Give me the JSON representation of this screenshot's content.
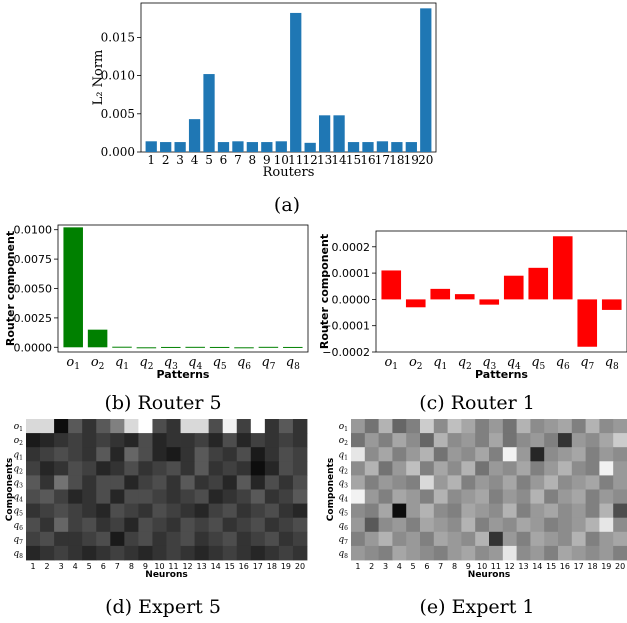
{
  "panels": {
    "a": {
      "caption": "(a)",
      "chart_data": {
        "type": "bar",
        "categories": [
          "1",
          "2",
          "3",
          "4",
          "5",
          "6",
          "7",
          "8",
          "9",
          "10",
          "11",
          "12",
          "13",
          "14",
          "15",
          "16",
          "17",
          "18",
          "19",
          "20"
        ],
        "values": [
          0.0014,
          0.0013,
          0.0013,
          0.0043,
          0.0102,
          0.0013,
          0.0014,
          0.0013,
          0.0013,
          0.0014,
          0.0182,
          0.0012,
          0.0048,
          0.0048,
          0.0013,
          0.0013,
          0.0014,
          0.0013,
          0.0013,
          0.0188
        ],
        "xlabel": "Routers",
        "ylabel": "L₂ Norm",
        "ylim": [
          0,
          0.0195
        ],
        "yticks": [
          0.0,
          0.005,
          0.01,
          0.015
        ],
        "ytick_labels": [
          "0.000",
          "0.005",
          "0.010",
          "0.015"
        ],
        "color": "#1f77b4"
      }
    },
    "b": {
      "caption": "(b) Router 5",
      "chart_data": {
        "type": "bar",
        "categories": [
          "o1",
          "o2",
          "q1",
          "q2",
          "q3",
          "q4",
          "q5",
          "q6",
          "q7",
          "q8"
        ],
        "category_labels": [
          [
            "o",
            "1"
          ],
          [
            "o",
            "2"
          ],
          [
            "q",
            "1"
          ],
          [
            "q",
            "2"
          ],
          [
            "q",
            "3"
          ],
          [
            "q",
            "4"
          ],
          [
            "q",
            "5"
          ],
          [
            "q",
            "6"
          ],
          [
            "q",
            "7"
          ],
          [
            "q",
            "8"
          ]
        ],
        "values": [
          0.0102,
          0.0015,
          5e-05,
          -8e-05,
          3e-05,
          4e-05,
          3e-05,
          -5e-05,
          4e-05,
          3e-05
        ],
        "xlabel": "Patterns",
        "ylabel": "Router component",
        "ylim": [
          -0.0004,
          0.0104
        ],
        "yticks": [
          0,
          0.0025,
          0.005,
          0.0075,
          0.01
        ],
        "ytick_labels": [
          "0.0000",
          "0.0025",
          "0.0050",
          "0.0075",
          "0.0100"
        ],
        "color": "#008000"
      }
    },
    "c": {
      "caption": "(c) Router 1",
      "chart_data": {
        "type": "bar",
        "categories": [
          "o1",
          "o2",
          "q1",
          "q2",
          "q3",
          "q4",
          "q5",
          "q6",
          "q7",
          "q8"
        ],
        "category_labels": [
          [
            "o",
            "1"
          ],
          [
            "o",
            "2"
          ],
          [
            "q",
            "1"
          ],
          [
            "q",
            "2"
          ],
          [
            "q",
            "3"
          ],
          [
            "q",
            "4"
          ],
          [
            "q",
            "5"
          ],
          [
            "q",
            "6"
          ],
          [
            "q",
            "7"
          ],
          [
            "q",
            "8"
          ]
        ],
        "values": [
          0.00011,
          -3e-05,
          4e-05,
          2e-05,
          -2e-05,
          9e-05,
          0.00012,
          0.00024,
          -0.00018,
          -4e-05
        ],
        "xlabel": "Patterns",
        "ylabel": "Router component",
        "ylim": [
          -0.0002,
          0.00026
        ],
        "yticks": [
          -0.0002,
          -0.0001,
          0.0,
          0.0001,
          0.0002
        ],
        "ytick_labels": [
          "−0.0002",
          "−0.0001",
          "0.0000",
          "0.0001",
          "0.0002"
        ],
        "color": "#ff0000"
      }
    },
    "d": {
      "caption": "(d) Expert 5",
      "chart_data": {
        "type": "heatmap",
        "xlabel": "Neurons",
        "ylabel": "Components",
        "x_categories": [
          "1",
          "2",
          "3",
          "4",
          "5",
          "6",
          "7",
          "8",
          "9",
          "10",
          "11",
          "12",
          "13",
          "14",
          "15",
          "16",
          "17",
          "18",
          "19",
          "20"
        ],
        "y_categories": [
          [
            "o",
            "1"
          ],
          [
            "o",
            "2"
          ],
          [
            "q",
            "1"
          ],
          [
            "q",
            "2"
          ],
          [
            "q",
            "3"
          ],
          [
            "q",
            "4"
          ],
          [
            "q",
            "5"
          ],
          [
            "q",
            "6"
          ],
          [
            "q",
            "7"
          ],
          [
            "q",
            "8"
          ]
        ],
        "values": [
          [
            0.85,
            0.85,
            0.05,
            0.35,
            0.2,
            0.35,
            0.5,
            0.85,
            1.0,
            0.3,
            0.2,
            0.85,
            0.85,
            0.3,
            0.95,
            0.25,
            1.0,
            0.2,
            0.35,
            0.2
          ],
          [
            0.1,
            0.15,
            0.2,
            0.25,
            0.2,
            0.25,
            0.2,
            0.15,
            0.3,
            0.15,
            0.2,
            0.2,
            0.25,
            0.15,
            0.3,
            0.15,
            0.25,
            0.2,
            0.25,
            0.2
          ],
          [
            0.2,
            0.25,
            0.3,
            0.25,
            0.2,
            0.35,
            0.15,
            0.4,
            0.3,
            0.15,
            0.1,
            0.2,
            0.35,
            0.25,
            0.2,
            0.3,
            0.1,
            0.2,
            0.3,
            0.25
          ],
          [
            0.25,
            0.15,
            0.2,
            0.3,
            0.25,
            0.15,
            0.2,
            0.3,
            0.2,
            0.25,
            0.3,
            0.2,
            0.35,
            0.2,
            0.25,
            0.2,
            0.05,
            0.15,
            0.3,
            0.25
          ],
          [
            0.35,
            0.2,
            0.45,
            0.3,
            0.2,
            0.3,
            0.3,
            0.15,
            0.25,
            0.3,
            0.2,
            0.35,
            0.2,
            0.25,
            0.15,
            0.35,
            0.15,
            0.3,
            0.2,
            0.3
          ],
          [
            0.3,
            0.35,
            0.25,
            0.15,
            0.2,
            0.3,
            0.15,
            0.3,
            0.3,
            0.25,
            0.2,
            0.25,
            0.3,
            0.15,
            0.2,
            0.25,
            0.35,
            0.2,
            0.25,
            0.35
          ],
          [
            0.2,
            0.25,
            0.3,
            0.25,
            0.2,
            0.15,
            0.3,
            0.25,
            0.2,
            0.3,
            0.25,
            0.2,
            0.15,
            0.25,
            0.3,
            0.2,
            0.25,
            0.3,
            0.2,
            0.15
          ],
          [
            0.3,
            0.2,
            0.4,
            0.25,
            0.3,
            0.2,
            0.25,
            0.15,
            0.3,
            0.25,
            0.2,
            0.3,
            0.25,
            0.3,
            0.2,
            0.25,
            0.3,
            0.2,
            0.25,
            0.3
          ],
          [
            0.25,
            0.3,
            0.2,
            0.2,
            0.25,
            0.3,
            0.1,
            0.25,
            0.3,
            0.2,
            0.25,
            0.3,
            0.2,
            0.25,
            0.3,
            0.2,
            0.25,
            0.3,
            0.2,
            0.25
          ],
          [
            0.15,
            0.2,
            0.25,
            0.2,
            0.15,
            0.2,
            0.25,
            0.2,
            0.15,
            0.2,
            0.25,
            0.2,
            0.15,
            0.2,
            0.25,
            0.2,
            0.15,
            0.2,
            0.25,
            0.2
          ]
        ]
      }
    },
    "e": {
      "caption": "(e) Expert 1",
      "chart_data": {
        "type": "heatmap",
        "xlabel": "Neurons",
        "ylabel": "Components",
        "x_categories": [
          "1",
          "2",
          "3",
          "4",
          "5",
          "6",
          "7",
          "8",
          "9",
          "10",
          "11",
          "12",
          "13",
          "14",
          "15",
          "16",
          "17",
          "18",
          "19",
          "20"
        ],
        "y_categories": [
          [
            "o",
            "1"
          ],
          [
            "o",
            "2"
          ],
          [
            "q",
            "1"
          ],
          [
            "q",
            "2"
          ],
          [
            "q",
            "3"
          ],
          [
            "q",
            "4"
          ],
          [
            "q",
            "5"
          ],
          [
            "q",
            "6"
          ],
          [
            "q",
            "7"
          ],
          [
            "q",
            "8"
          ]
        ],
        "values": [
          [
            0.6,
            0.45,
            0.7,
            0.4,
            0.5,
            0.8,
            0.55,
            0.75,
            0.65,
            0.5,
            0.6,
            0.45,
            0.7,
            0.55,
            0.6,
            0.65,
            0.5,
            0.7,
            0.55,
            0.6
          ],
          [
            0.45,
            0.6,
            0.5,
            0.65,
            0.55,
            0.4,
            0.7,
            0.55,
            0.6,
            0.5,
            0.65,
            0.45,
            0.55,
            0.6,
            0.5,
            0.2,
            0.6,
            0.55,
            0.65,
            0.8
          ],
          [
            0.9,
            0.55,
            0.65,
            0.5,
            0.6,
            0.7,
            0.45,
            0.6,
            0.55,
            0.65,
            0.5,
            0.95,
            0.6,
            0.15,
            0.55,
            0.6,
            0.65,
            0.5,
            0.6,
            0.55
          ],
          [
            0.55,
            0.7,
            0.45,
            0.6,
            0.75,
            0.5,
            0.65,
            0.55,
            0.7,
            0.45,
            0.6,
            0.55,
            0.65,
            0.5,
            0.6,
            0.7,
            0.55,
            0.5,
            0.95,
            0.6
          ],
          [
            0.65,
            0.5,
            0.6,
            0.55,
            0.5,
            0.85,
            0.6,
            0.7,
            0.5,
            0.6,
            0.55,
            0.65,
            0.5,
            0.6,
            0.7,
            0.55,
            0.6,
            0.65,
            0.5,
            0.6
          ],
          [
            0.95,
            0.6,
            0.5,
            0.65,
            0.6,
            0.5,
            0.7,
            0.55,
            0.6,
            0.65,
            0.5,
            0.6,
            0.55,
            0.7,
            0.5,
            0.6,
            0.65,
            0.5,
            0.6,
            0.55
          ],
          [
            0.55,
            0.5,
            0.65,
            0.05,
            0.6,
            0.7,
            0.55,
            0.5,
            0.65,
            0.6,
            0.55,
            0.7,
            0.5,
            0.6,
            0.65,
            0.55,
            0.6,
            0.5,
            0.7,
            0.3
          ],
          [
            0.6,
            0.35,
            0.55,
            0.6,
            0.5,
            0.65,
            0.6,
            0.55,
            0.7,
            0.5,
            0.6,
            0.55,
            0.65,
            0.6,
            0.5,
            0.55,
            0.6,
            0.7,
            0.9,
            0.55
          ],
          [
            0.5,
            0.6,
            0.7,
            0.55,
            0.6,
            0.5,
            0.65,
            0.6,
            0.55,
            0.7,
            0.2,
            0.6,
            0.5,
            0.65,
            0.6,
            0.55,
            0.7,
            0.5,
            0.6,
            0.65
          ],
          [
            0.6,
            0.55,
            0.5,
            0.65,
            0.6,
            0.55,
            0.5,
            0.6,
            0.65,
            0.55,
            0.6,
            0.9,
            0.55,
            0.6,
            0.5,
            0.65,
            0.6,
            0.55,
            0.6,
            0.5
          ]
        ]
      }
    }
  }
}
